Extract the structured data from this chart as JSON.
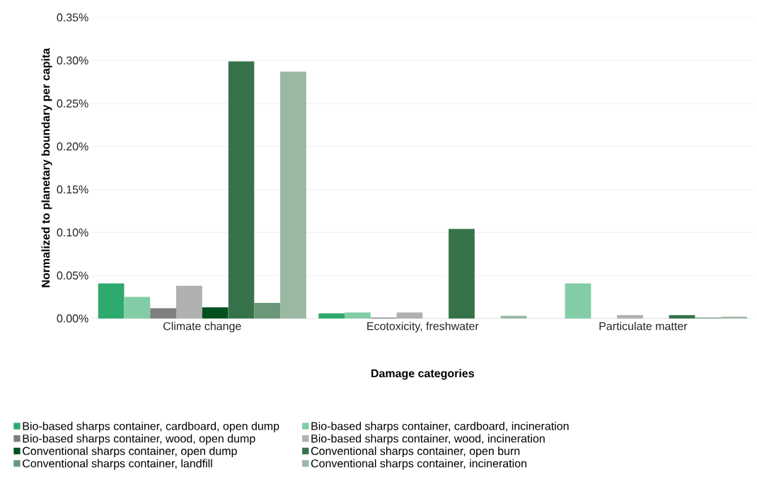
{
  "chart_data": {
    "type": "bar",
    "xlabel": "Damage categories",
    "ylabel": "Normalized to planetary boundary per capita",
    "categories": [
      "Climate change",
      "Ecotoxicity, freshwater",
      "Particulate matter"
    ],
    "series": [
      {
        "name": "Bio-based sharps container, cardboard, open dump",
        "color": "#2eaa6e",
        "values": [
          0.041,
          0.006,
          0
        ]
      },
      {
        "name": "Bio-based sharps container, cardboard, incineration",
        "color": "#82cda6",
        "values": [
          0.025,
          0.007,
          0.041
        ]
      },
      {
        "name": "Bio-based sharps container, wood, open dump",
        "color": "#7f7f7f",
        "values": [
          0.012,
          0.001,
          0
        ]
      },
      {
        "name": "Bio-based sharps container, wood, incineration",
        "color": "#b0b0b0",
        "values": [
          0.038,
          0.007,
          0.004
        ]
      },
      {
        "name": "Conventional sharps container, open dump",
        "color": "#00501e",
        "values": [
          0.013,
          0,
          0
        ]
      },
      {
        "name": "Conventional sharps container, open burn",
        "color": "#36734a",
        "values": [
          0.299,
          0.104,
          0.004
        ]
      },
      {
        "name": "Conventional sharps container, landfill",
        "color": "#6a9878",
        "values": [
          0.018,
          0,
          0.001
        ]
      },
      {
        "name": "Conventional sharps container, incineration",
        "color": "#9bb8a2",
        "values": [
          0.287,
          0.003,
          0.002
        ]
      }
    ],
    "ylim": [
      0,
      0.35
    ],
    "yticks": [
      {
        "value": 0,
        "label": "0.00%"
      },
      {
        "value": 0.05,
        "label": "0.05%"
      },
      {
        "value": 0.1,
        "label": "0.10%"
      },
      {
        "value": 0.15,
        "label": "0.15%"
      },
      {
        "value": 0.2,
        "label": "0.20%"
      },
      {
        "value": 0.25,
        "label": "0.25%"
      },
      {
        "value": 0.3,
        "label": "0.30%"
      },
      {
        "value": 0.35,
        "label": "0.35%"
      }
    ],
    "grid": "y",
    "legend": "bottom"
  }
}
